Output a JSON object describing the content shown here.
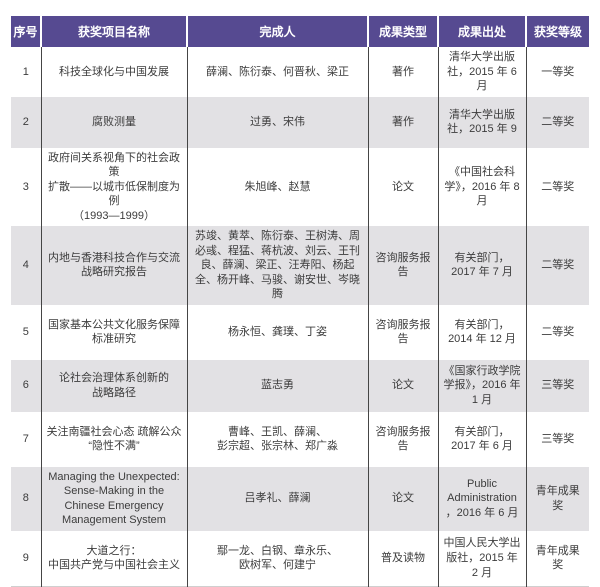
{
  "table": {
    "headers": {
      "no": "序号",
      "project": "获奖项目名称",
      "authors": "完成人",
      "type": "成果类型",
      "source": "成果出处",
      "award": "获奖等级"
    },
    "rows": [
      {
        "no": "1",
        "project": "科技全球化与中国发展",
        "authors": "薛澜、陈衍泰、何晋秋、梁正",
        "type": "著作",
        "source": "清华大学出版社，2015 年 6 月",
        "award": "一等奖"
      },
      {
        "no": "2",
        "project": "腐败测量",
        "authors": "过勇、宋伟",
        "type": "著作",
        "source": "清华大学出版社，2015 年 9",
        "award": "二等奖"
      },
      {
        "no": "3",
        "project": "政府间关系视角下的社会政策\n扩散——以城市低保制度为例\n（1993—1999）",
        "authors": "朱旭峰、赵慧",
        "type": "论文",
        "source": "《中国社会科学》，2016 年 8 月",
        "award": "二等奖"
      },
      {
        "no": "4",
        "project": "内地与香港科技合作与交流战略研究报告",
        "authors": "苏竣、黄萃、陈衍泰、王树涛、周必彧、程猛、蒋杭波、刘云、王刊良、薛澜、梁正、汪寿阳、杨起全、杨开峰、马骏、谢安世、岑晓腾",
        "type": "咨询服务报告",
        "source": "有关部门，2017 年 7 月",
        "award": "二等奖"
      },
      {
        "no": "5",
        "project": "国家基本公共文化服务保障\n标准研究",
        "authors": "杨永恒、龚璞、丁姿",
        "type": "咨询服务报告",
        "source": "有关部门，2014 年 12 月",
        "award": "二等奖"
      },
      {
        "no": "6",
        "project": "论社会治理体系创新的\n战略路径",
        "authors": "蓝志勇",
        "type": "论文",
        "source": "《国家行政学院学报》，2016 年 1 月",
        "award": "三等奖"
      },
      {
        "no": "7",
        "project": "关注南疆社会心态 疏解公众\n“隐性不满”",
        "authors": "曹峰、王凯、薛澜、\n彭宗超、张宗林、郑广淼",
        "type": "咨询服务报告",
        "source": "有关部门，2017 年 6 月",
        "award": "三等奖"
      },
      {
        "no": "8",
        "project": "Managing the Unexpected: Sense-Making in the Chinese Emergency Management System",
        "authors": "吕孝礼、薛澜",
        "type": "论文",
        "source": "Public Administration，2016 年 6 月",
        "award": "青年成果奖"
      },
      {
        "no": "9",
        "project": "大道之行：\n中国共产党与中国社会主义",
        "authors": "鄢一龙、白钢、章永乐、\n欧树军、何建宁",
        "type": "普及读物",
        "source": "中国人民大学出版社，2015 年 2 月",
        "award": "青年成果奖"
      }
    ]
  },
  "colors": {
    "header_bg": "#564a91",
    "header_text": "#ffffff",
    "row_alt_bg": "#e2e1e4",
    "body_text": "#3c3c3c",
    "divider": "#454545",
    "bottom_line": "#cfcfcf"
  }
}
